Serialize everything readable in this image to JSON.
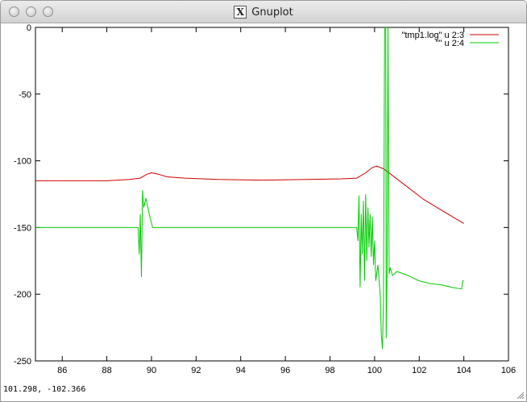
{
  "window": {
    "title": "Gnuplot",
    "icon": "x11-icon"
  },
  "statusbar": {
    "coords": "101.298, -102.366"
  },
  "chart_data": {
    "type": "line",
    "xlim": [
      84.8,
      106
    ],
    "ylim": [
      -250,
      0
    ],
    "xticks": [
      "86",
      "88",
      "90",
      "92",
      "94",
      "96",
      "98",
      "100",
      "102",
      "104",
      "106"
    ],
    "yticks": [
      "0",
      "-50",
      "-100",
      "-150",
      "-200",
      "-250"
    ],
    "legend_position": "top-right",
    "grid": false,
    "series": [
      {
        "name": "\"tmp1.log\" u 2:3",
        "color": "#cc0000",
        "points": [
          [
            84.8,
            -115
          ],
          [
            88,
            -115
          ],
          [
            89,
            -114
          ],
          [
            89.5,
            -113
          ],
          [
            89.8,
            -110
          ],
          [
            90,
            -109
          ],
          [
            90.3,
            -110
          ],
          [
            90.7,
            -112
          ],
          [
            91.5,
            -113
          ],
          [
            93,
            -114
          ],
          [
            95,
            -114.5
          ],
          [
            97,
            -114
          ],
          [
            98.5,
            -113.5
          ],
          [
            99.2,
            -113
          ],
          [
            99.6,
            -109
          ],
          [
            99.9,
            -105
          ],
          [
            100.1,
            -104
          ],
          [
            100.4,
            -106
          ],
          [
            100.8,
            -111
          ],
          [
            101.5,
            -120
          ],
          [
            102.2,
            -129
          ],
          [
            103,
            -137
          ],
          [
            103.5,
            -142
          ],
          [
            104,
            -147
          ]
        ]
      },
      {
        "name": "\"\" u 2:4",
        "color": "#00cc00",
        "points": [
          [
            84.8,
            -150
          ],
          [
            89.4,
            -150
          ],
          [
            89.45,
            -170
          ],
          [
            89.5,
            -140
          ],
          [
            89.55,
            -187
          ],
          [
            89.6,
            -122
          ],
          [
            89.65,
            -135
          ],
          [
            89.75,
            -128
          ],
          [
            89.9,
            -140
          ],
          [
            90.05,
            -150
          ],
          [
            99.2,
            -150
          ],
          [
            99.25,
            -160
          ],
          [
            99.3,
            -126
          ],
          [
            99.35,
            -195
          ],
          [
            99.4,
            -140
          ],
          [
            99.45,
            -170
          ],
          [
            99.5,
            -130
          ],
          [
            99.55,
            -190
          ],
          [
            99.6,
            -125
          ],
          [
            99.65,
            -175
          ],
          [
            99.7,
            -135
          ],
          [
            99.75,
            -165
          ],
          [
            99.8,
            -140
          ],
          [
            99.85,
            -172
          ],
          [
            99.9,
            -142
          ],
          [
            99.95,
            -178
          ],
          [
            100,
            -160
          ],
          [
            100.05,
            -190
          ],
          [
            100.15,
            -178
          ],
          [
            100.25,
            -200
          ],
          [
            100.3,
            -230
          ],
          [
            100.35,
            -241
          ],
          [
            100.4,
            -205
          ],
          [
            100.45,
            0
          ],
          [
            100.5,
            0
          ],
          [
            100.52,
            -233
          ],
          [
            100.56,
            -180
          ],
          [
            100.6,
            0
          ],
          [
            100.65,
            -185
          ],
          [
            100.7,
            -180
          ],
          [
            100.8,
            -186
          ],
          [
            101,
            -183
          ],
          [
            101.5,
            -186
          ],
          [
            102,
            -190
          ],
          [
            102.5,
            -192
          ],
          [
            103,
            -193
          ],
          [
            103.5,
            -195
          ],
          [
            103.9,
            -196
          ],
          [
            103.95,
            -190
          ],
          [
            104,
            -190
          ]
        ]
      }
    ]
  }
}
